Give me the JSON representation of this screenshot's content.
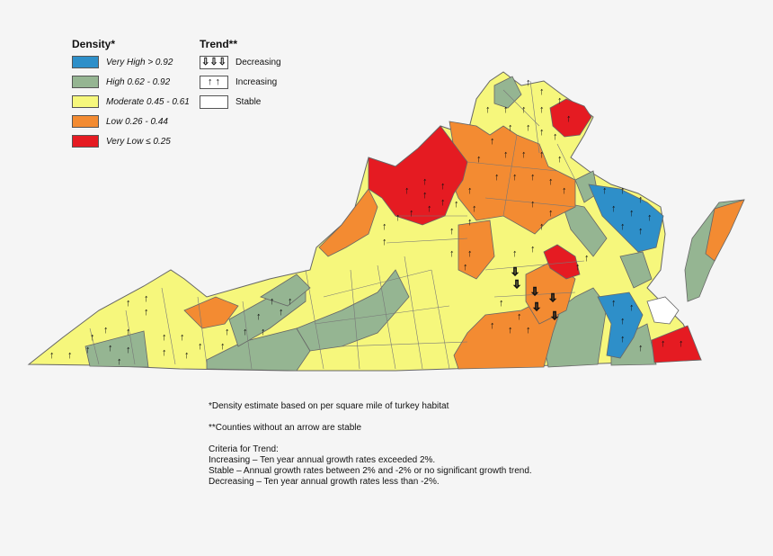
{
  "legend_density": {
    "title": "Density*",
    "items": [
      {
        "label": "Very High > 0.92",
        "color": "#2e8fc9"
      },
      {
        "label": "High 0.62 - 0.92",
        "color": "#95b592"
      },
      {
        "label": "Moderate 0.45 - 0.61",
        "color": "#f6f77c"
      },
      {
        "label": "Low 0.26 - 0.44",
        "color": "#f38b32"
      },
      {
        "label": "Very Low ≤ 0.25",
        "color": "#e51b22"
      }
    ]
  },
  "legend_trend": {
    "title": "Trend**",
    "items": [
      {
        "label": "Decreasing",
        "icon": "down-arrow-icon",
        "glyph": "⇩⇩⇩"
      },
      {
        "label": "Increasing",
        "icon": "up-arrow-icon",
        "glyph": "↑ ↑"
      },
      {
        "label": "Stable",
        "icon": "blank-icon",
        "glyph": ""
      }
    ]
  },
  "notes": {
    "density_note": "*Density estimate based on per square mile of turkey habitat",
    "stable_note": "**Counties without an arrow are stable",
    "criteria_title": "Criteria for Trend:",
    "increasing": "Increasing – Ten year annual growth rates exceeded 2%.",
    "stable": "Stable – Annual growth rates between 2% and -2% or no significant growth trend.",
    "decreasing": "Decreasing – Ten year annual growth rates less than -2%."
  },
  "colors": {
    "very_high": "#2e8fc9",
    "high": "#95b592",
    "moderate": "#f6f77c",
    "low": "#f38b32",
    "very_low": "#e51b22",
    "border": "#555555",
    "tidewater": "#ffffff"
  }
}
